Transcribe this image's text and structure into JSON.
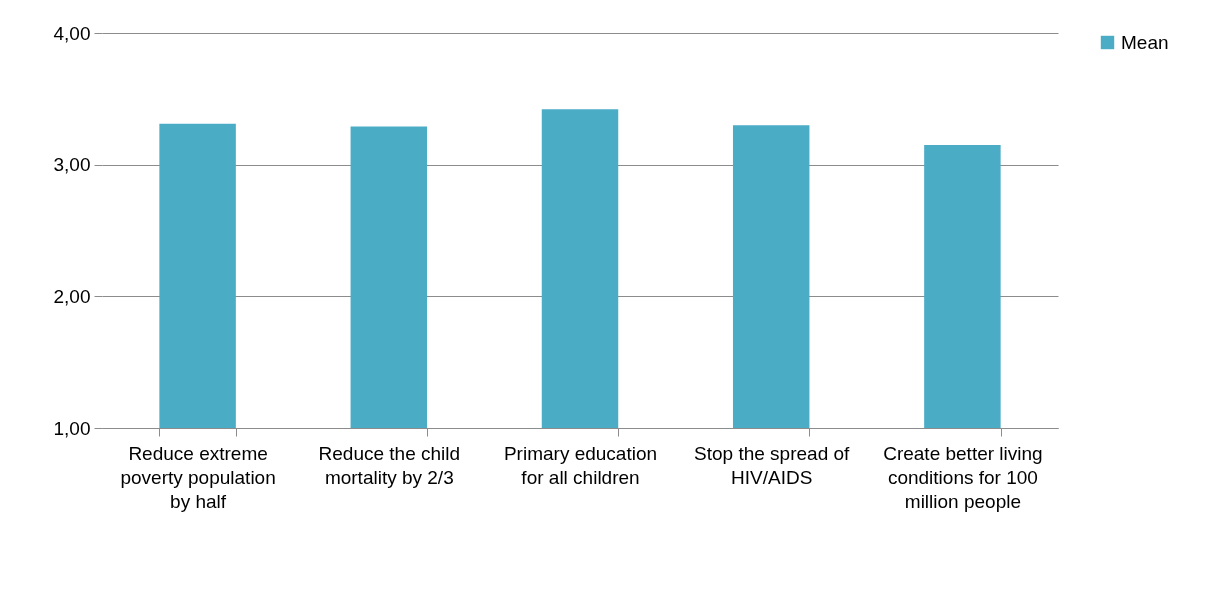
{
  "chart_data": {
    "type": "bar",
    "categories": [
      "Reduce extreme poverty population by half",
      "Reduce the child mortality by 2/3",
      "Primary education for all children",
      "Stop the spread of HIV/AIDS",
      "Create better living conditions for 100 million people"
    ],
    "series": [
      {
        "name": "Mean",
        "color": "#4bacc6",
        "values": [
          3.31,
          3.29,
          3.42,
          3.3,
          3.15
        ]
      }
    ],
    "ylim": [
      1,
      4
    ],
    "yticks": [
      {
        "value": 1,
        "label": "1,00"
      },
      {
        "value": 2,
        "label": "2,00"
      },
      {
        "value": 3,
        "label": "3,00"
      },
      {
        "value": 4,
        "label": "4,00"
      }
    ],
    "grid": "y",
    "legend": "right"
  }
}
